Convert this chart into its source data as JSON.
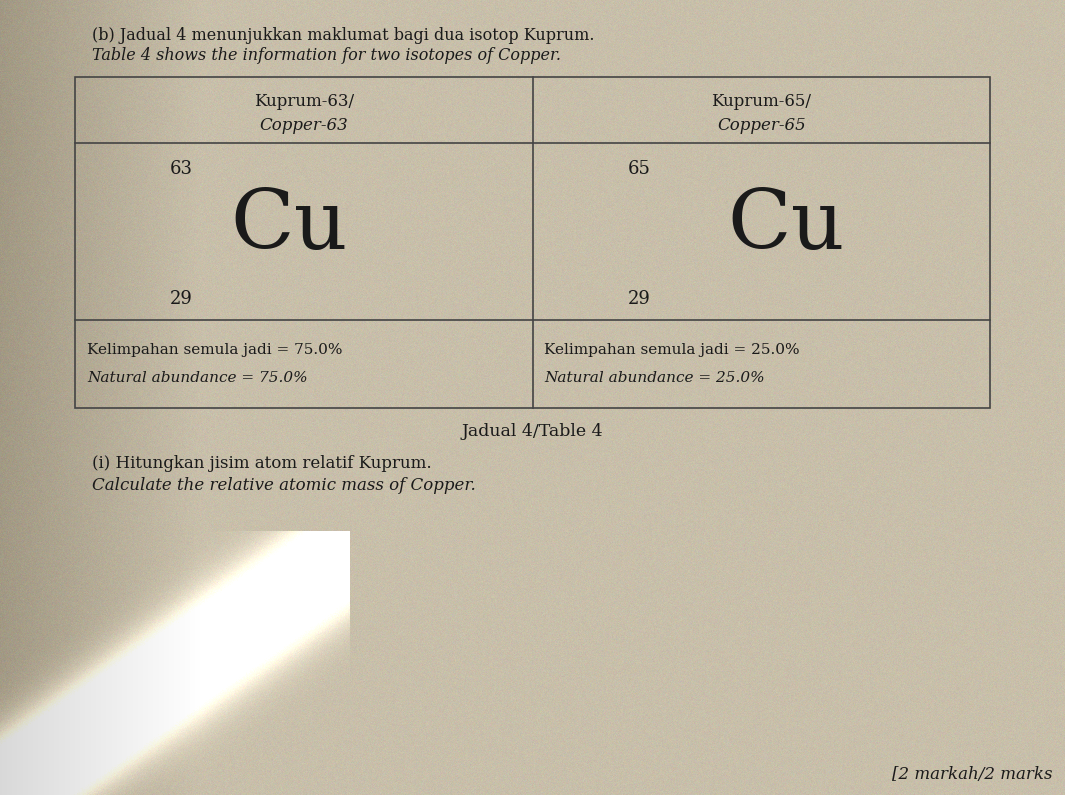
{
  "bg_color": "#c4bba8",
  "cell_bg": "#c8bfaa",
  "table_border_color": "#555555",
  "title_line1": "(b) Jadual 4 menunjukkan maklumat bagi dua isotop Kuprum.",
  "title_line2": "Table 4 shows the information for two isotopes of Copper.",
  "col1_header_line1": "Kuprum-63/",
  "col1_header_line2": "Copper-63",
  "col2_header_line1": "Kuprum-65/",
  "col2_header_line2": "Copper-65",
  "col1_mass": "63",
  "col1_symbol": "Cu",
  "col1_atomic": "29",
  "col2_mass": "65",
  "col2_symbol": "Cu",
  "col2_atomic": "29",
  "col1_abundance_line1": "Kelimpahan semula jadi = 75.0%",
  "col1_abundance_line2": "Natural abundance = 75.0%",
  "col2_abundance_line1": "Kelimpahan semula jadi = 25.0%",
  "col2_abundance_line2": "Natural abundance = 25.0%",
  "table_caption": "Jadual 4/Table 4",
  "question_line1": "(i) Hitungkan jisim atom relatif Kuprum.",
  "question_line2": "Calculate the relative atomic mass of Copper.",
  "marks": "[2 markah/2 marks"
}
